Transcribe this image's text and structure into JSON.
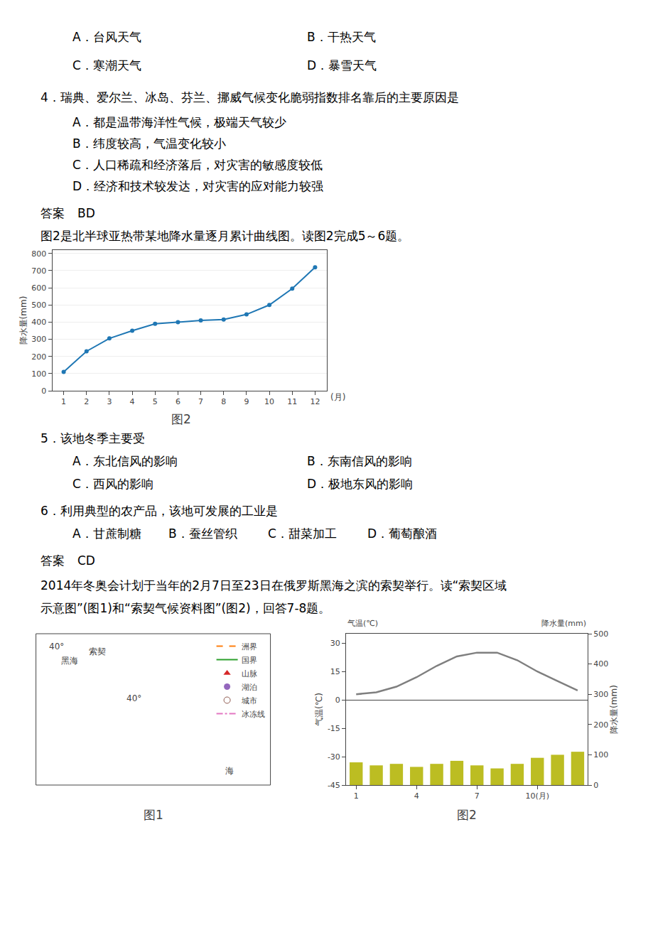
{
  "page_text": [
    [
      "A．台风天气",
      "B．干热天气"
    ],
    [
      "C．寒潮天气",
      "D．暴雪天气"
    ],
    [
      "4．瑞典、爱尔兰、冰岛、芬兰、挪威气候变化脆弱指数排名靠后的主要原因是"
    ],
    [
      "A．都是温带海洋性气候，极端天气较少"
    ],
    [
      "B．纬度较高，气温变化较小"
    ],
    [
      "C．人口稀疏和经济落后，对灾害的敏感度较低"
    ],
    [
      "D．经济和技术较发达，对灾害的应对能力较强"
    ],
    [
      "答案",
      "BD"
    ],
    [
      "图2是北半球亚热带某地降水量逐月累计曲线图。读图2完成5～6题。"
    ],
    [
      "5．该地冬季主要受"
    ],
    [
      "A．东北信风的影响",
      "B．东南信风的影响"
    ],
    [
      "C．西风的影响",
      "D．极地东风的影响"
    ],
    [
      "6．利用典型的农产品，该地可发展的工业是"
    ],
    [
      "A．甘蔗制糖",
      "B．蚕丝管织",
      "C．甜菜加工",
      "D．葡萄酿酒"
    ],
    [
      "答案",
      "CD"
    ],
    [
      "2014年冬奥会计划于当年的2月7日至23日在俄罗斯黑海之滨的索契举行。读“索契区域"
    ],
    [
      "示意图”(图1)和“索契气候资料图”(图2)，回答7-8题。"
    ]
  ],
  "chart_data": [
    {
      "type": "line",
      "title": "图2",
      "x": [
        1,
        2,
        3,
        4,
        5,
        6,
        7,
        8,
        9,
        10,
        11,
        12
      ],
      "values": [
        110,
        230,
        305,
        350,
        390,
        400,
        410,
        415,
        445,
        500,
        595,
        720
      ],
      "xlim": [
        0.5,
        12.5
      ],
      "xticks": [
        1,
        2,
        3,
        4,
        5,
        6,
        7,
        8,
        9,
        10,
        11,
        12
      ],
      "xlabel": "(月)",
      "ylabel": "降水量(mm)",
      "ylim": [
        0,
        820
      ],
      "yticks": [
        0,
        100,
        200,
        300,
        400,
        500,
        600,
        700,
        800
      ],
      "grid": true,
      "marker": "circle"
    },
    {
      "type": "map",
      "title": "图1",
      "annotations": [
        "40°",
        "黑海",
        "索契",
        "40°",
        "海"
      ],
      "legend": "upper right",
      "series": [
        {
          "name": "洲界",
          "line_style": "dashed"
        },
        {
          "name": "国界",
          "line_style": "solid"
        },
        {
          "name": "山脉",
          "marker": "triangle-up"
        },
        {
          "name": "湖泊",
          "marker": "circle"
        },
        {
          "name": "城市",
          "marker": "circle-open"
        },
        {
          "name": "冰冻线",
          "line_style": "dashdot"
        }
      ]
    },
    {
      "type": "combo",
      "title": "图2",
      "x": [
        1,
        2,
        3,
        4,
        5,
        6,
        7,
        8,
        9,
        10,
        11,
        12
      ],
      "xlim": [
        0.5,
        12.5
      ],
      "xticks": [
        1,
        4,
        7,
        {
          "value": 10,
          "label": "10(月)"
        }
      ],
      "ylabel": "气温(℃)",
      "ylim": [
        -45,
        35
      ],
      "yticks": [
        -45,
        -30,
        -15,
        0,
        15,
        30
      ],
      "y2label": "降水量(mm)",
      "y2lim": [
        0,
        500
      ],
      "y2ticks": [
        0,
        100,
        200,
        300,
        400,
        500
      ],
      "grid": false,
      "series": [
        {
          "type": "line",
          "values": [
            3,
            4,
            7,
            12,
            18,
            23,
            25,
            25,
            21,
            15,
            10,
            5
          ]
        },
        {
          "type": "bar",
          "axis": "y2",
          "values": [
            75,
            65,
            70,
            60,
            70,
            80,
            65,
            55,
            70,
            90,
            100,
            110
          ]
        }
      ]
    }
  ]
}
